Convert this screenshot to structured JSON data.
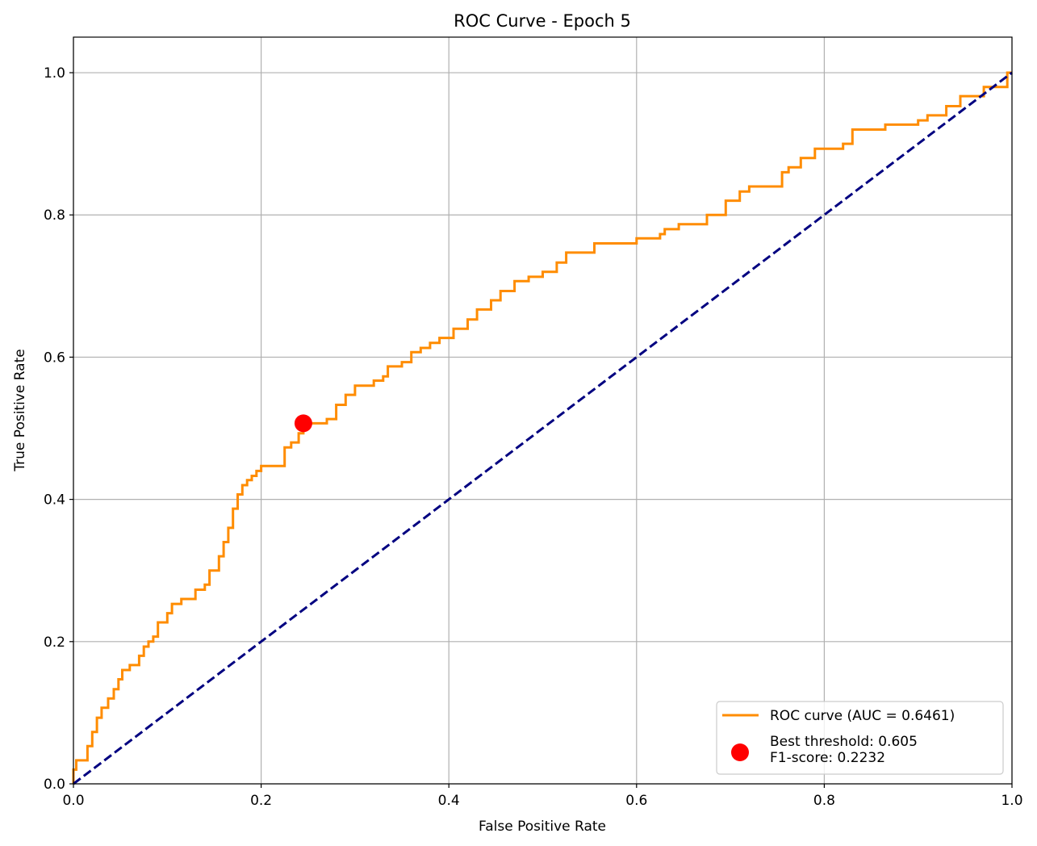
{
  "chart_data": {
    "type": "line",
    "title": "ROC Curve - Epoch 5",
    "xlabel": "False Positive Rate",
    "ylabel": "True Positive Rate",
    "xlim": [
      0.0,
      1.0
    ],
    "ylim": [
      0.0,
      1.05
    ],
    "xticks": [
      "0.0",
      "0.2",
      "0.4",
      "0.6",
      "0.8",
      "1.0"
    ],
    "yticks": [
      "0.0",
      "0.2",
      "0.4",
      "0.6",
      "0.8",
      "1.0"
    ],
    "grid": true,
    "legend_position": "bottom-right",
    "series": [
      {
        "name": "ROC curve (AUC = 0.6461)",
        "color": "#ff8c00",
        "style": "step",
        "x": [
          0.0,
          0.0,
          0.003,
          0.003,
          0.015,
          0.015,
          0.02,
          0.02,
          0.025,
          0.025,
          0.03,
          0.03,
          0.037,
          0.037,
          0.043,
          0.043,
          0.048,
          0.048,
          0.052,
          0.052,
          0.055,
          0.055,
          0.06,
          0.06,
          0.07,
          0.07,
          0.075,
          0.075,
          0.08,
          0.08,
          0.085,
          0.085,
          0.09,
          0.09,
          0.1,
          0.1,
          0.105,
          0.105,
          0.11,
          0.11,
          0.115,
          0.115,
          0.13,
          0.13,
          0.14,
          0.14,
          0.145,
          0.145,
          0.155,
          0.155,
          0.16,
          0.16,
          0.165,
          0.165,
          0.17,
          0.17,
          0.175,
          0.175,
          0.18,
          0.18,
          0.185,
          0.185,
          0.19,
          0.19,
          0.195,
          0.195,
          0.2,
          0.2,
          0.225,
          0.225,
          0.232,
          0.232,
          0.24,
          0.24,
          0.245,
          0.245,
          0.27,
          0.27,
          0.28,
          0.28,
          0.29,
          0.29,
          0.3,
          0.3,
          0.32,
          0.32,
          0.33,
          0.33,
          0.335,
          0.335,
          0.35,
          0.35,
          0.36,
          0.36,
          0.37,
          0.37,
          0.38,
          0.38,
          0.39,
          0.39,
          0.405,
          0.405,
          0.42,
          0.42,
          0.43,
          0.43,
          0.445,
          0.445,
          0.455,
          0.455,
          0.47,
          0.47,
          0.485,
          0.485,
          0.5,
          0.5,
          0.515,
          0.515,
          0.525,
          0.525,
          0.555,
          0.555,
          0.6,
          0.6,
          0.625,
          0.625,
          0.63,
          0.63,
          0.645,
          0.645,
          0.675,
          0.675,
          0.695,
          0.695,
          0.71,
          0.71,
          0.72,
          0.72,
          0.755,
          0.755,
          0.762,
          0.762,
          0.775,
          0.775,
          0.79,
          0.79,
          0.82,
          0.82,
          0.83,
          0.83,
          0.865,
          0.865,
          0.9,
          0.9,
          0.91,
          0.91,
          0.93,
          0.93,
          0.945,
          0.945,
          0.97,
          0.97,
          0.995,
          0.995,
          1.0
        ],
        "y": [
          0.0,
          0.02,
          0.02,
          0.033,
          0.033,
          0.053,
          0.053,
          0.073,
          0.073,
          0.093,
          0.093,
          0.107,
          0.107,
          0.12,
          0.12,
          0.133,
          0.133,
          0.147,
          0.147,
          0.16,
          0.16,
          0.16,
          0.16,
          0.167,
          0.167,
          0.18,
          0.18,
          0.193,
          0.193,
          0.2,
          0.2,
          0.207,
          0.207,
          0.227,
          0.227,
          0.24,
          0.24,
          0.253,
          0.253,
          0.253,
          0.253,
          0.26,
          0.26,
          0.273,
          0.273,
          0.28,
          0.28,
          0.3,
          0.3,
          0.32,
          0.32,
          0.34,
          0.34,
          0.36,
          0.36,
          0.387,
          0.387,
          0.407,
          0.407,
          0.42,
          0.42,
          0.427,
          0.427,
          0.433,
          0.433,
          0.44,
          0.44,
          0.447,
          0.447,
          0.473,
          0.473,
          0.48,
          0.48,
          0.493,
          0.493,
          0.507,
          0.507,
          0.513,
          0.513,
          0.533,
          0.533,
          0.547,
          0.547,
          0.56,
          0.56,
          0.567,
          0.567,
          0.573,
          0.573,
          0.587,
          0.587,
          0.593,
          0.593,
          0.607,
          0.607,
          0.613,
          0.613,
          0.62,
          0.62,
          0.627,
          0.627,
          0.64,
          0.64,
          0.653,
          0.653,
          0.667,
          0.667,
          0.68,
          0.68,
          0.693,
          0.693,
          0.707,
          0.707,
          0.713,
          0.713,
          0.72,
          0.72,
          0.733,
          0.733,
          0.747,
          0.747,
          0.76,
          0.76,
          0.767,
          0.767,
          0.773,
          0.773,
          0.78,
          0.78,
          0.787,
          0.787,
          0.8,
          0.8,
          0.82,
          0.82,
          0.833,
          0.833,
          0.84,
          0.84,
          0.86,
          0.86,
          0.867,
          0.867,
          0.88,
          0.88,
          0.893,
          0.893,
          0.9,
          0.9,
          0.92,
          0.92,
          0.927,
          0.927,
          0.933,
          0.933,
          0.94,
          0.94,
          0.953,
          0.953,
          0.967,
          0.967,
          0.98,
          0.98,
          1.0,
          1.0
        ]
      },
      {
        "name": "",
        "color": "#000080",
        "style": "dashed",
        "x": [
          0.0,
          1.0
        ],
        "y": [
          0.0,
          1.0
        ]
      }
    ],
    "markers": [
      {
        "name": "Best threshold: 0.605\nF1-score: 0.2232",
        "legend_lines": [
          "Best threshold: 0.605",
          "F1-score: 0.2232"
        ],
        "color": "#ff0000",
        "x": 0.245,
        "y": 0.507
      }
    ]
  }
}
